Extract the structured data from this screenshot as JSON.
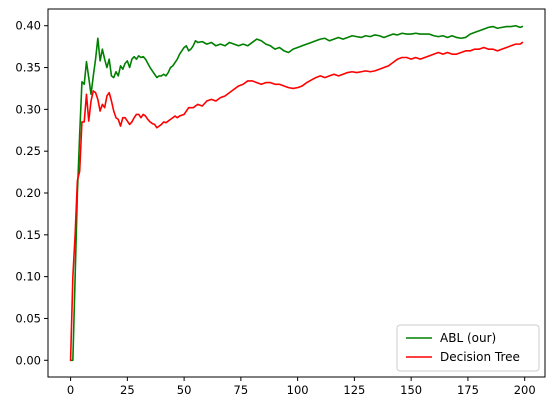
{
  "chart_data": {
    "type": "line",
    "title": "",
    "xlabel": "",
    "ylabel": "",
    "xlim": [
      -9.95,
      208.95
    ],
    "ylim": [
      -0.02,
      0.42
    ],
    "xticks": [
      0,
      25,
      50,
      75,
      100,
      125,
      150,
      175,
      200
    ],
    "yticks": [
      0.0,
      0.05,
      0.1,
      0.15,
      0.2,
      0.25,
      0.3,
      0.35,
      0.4
    ],
    "xtick_labels": [
      "0",
      "25",
      "50",
      "75",
      "100",
      "125",
      "150",
      "175",
      "200"
    ],
    "ytick_labels": [
      "0.00",
      "0.05",
      "0.10",
      "0.15",
      "0.20",
      "0.25",
      "0.30",
      "0.35",
      "0.40"
    ],
    "grid": false,
    "legend": {
      "position": "lower-right"
    },
    "series": [
      {
        "name": "ABL (our)",
        "color": "#008000",
        "points": [
          [
            0,
            0.0
          ],
          [
            1,
            0.0
          ],
          [
            2,
            0.1
          ],
          [
            3,
            0.2
          ],
          [
            4,
            0.27
          ],
          [
            5,
            0.333
          ],
          [
            6,
            0.33
          ],
          [
            7,
            0.357
          ],
          [
            8,
            0.338
          ],
          [
            9,
            0.318
          ],
          [
            10,
            0.34
          ],
          [
            11,
            0.36
          ],
          [
            12,
            0.385
          ],
          [
            13,
            0.358
          ],
          [
            14,
            0.372
          ],
          [
            15,
            0.36
          ],
          [
            16,
            0.35
          ],
          [
            17,
            0.36
          ],
          [
            18,
            0.34
          ],
          [
            19,
            0.338
          ],
          [
            20,
            0.345
          ],
          [
            21,
            0.34
          ],
          [
            22,
            0.352
          ],
          [
            23,
            0.348
          ],
          [
            24,
            0.355
          ],
          [
            25,
            0.358
          ],
          [
            26,
            0.35
          ],
          [
            27,
            0.36
          ],
          [
            28,
            0.363
          ],
          [
            29,
            0.36
          ],
          [
            30,
            0.364
          ],
          [
            31,
            0.362
          ],
          [
            32,
            0.363
          ],
          [
            33,
            0.36
          ],
          [
            34,
            0.355
          ],
          [
            35,
            0.35
          ],
          [
            36,
            0.346
          ],
          [
            37,
            0.342
          ],
          [
            38,
            0.338
          ],
          [
            39,
            0.34
          ],
          [
            40,
            0.34
          ],
          [
            41,
            0.342
          ],
          [
            42,
            0.34
          ],
          [
            43,
            0.344
          ],
          [
            44,
            0.35
          ],
          [
            45,
            0.352
          ],
          [
            46,
            0.356
          ],
          [
            47,
            0.36
          ],
          [
            48,
            0.366
          ],
          [
            49,
            0.37
          ],
          [
            50,
            0.374
          ],
          [
            51,
            0.376
          ],
          [
            52,
            0.37
          ],
          [
            53,
            0.372
          ],
          [
            54,
            0.376
          ],
          [
            55,
            0.382
          ],
          [
            56,
            0.38
          ],
          [
            58,
            0.381
          ],
          [
            60,
            0.378
          ],
          [
            62,
            0.38
          ],
          [
            64,
            0.376
          ],
          [
            66,
            0.378
          ],
          [
            68,
            0.376
          ],
          [
            70,
            0.38
          ],
          [
            72,
            0.378
          ],
          [
            74,
            0.376
          ],
          [
            76,
            0.378
          ],
          [
            78,
            0.376
          ],
          [
            80,
            0.38
          ],
          [
            82,
            0.384
          ],
          [
            84,
            0.382
          ],
          [
            86,
            0.378
          ],
          [
            88,
            0.376
          ],
          [
            90,
            0.372
          ],
          [
            92,
            0.374
          ],
          [
            94,
            0.37
          ],
          [
            96,
            0.368
          ],
          [
            98,
            0.372
          ],
          [
            100,
            0.374
          ],
          [
            102,
            0.376
          ],
          [
            104,
            0.378
          ],
          [
            106,
            0.38
          ],
          [
            108,
            0.382
          ],
          [
            110,
            0.384
          ],
          [
            112,
            0.385
          ],
          [
            114,
            0.382
          ],
          [
            116,
            0.384
          ],
          [
            118,
            0.386
          ],
          [
            120,
            0.384
          ],
          [
            122,
            0.386
          ],
          [
            124,
            0.388
          ],
          [
            126,
            0.387
          ],
          [
            128,
            0.386
          ],
          [
            130,
            0.388
          ],
          [
            132,
            0.387
          ],
          [
            134,
            0.389
          ],
          [
            136,
            0.388
          ],
          [
            138,
            0.386
          ],
          [
            140,
            0.388
          ],
          [
            142,
            0.39
          ],
          [
            144,
            0.389
          ],
          [
            146,
            0.391
          ],
          [
            148,
            0.39
          ],
          [
            150,
            0.39
          ],
          [
            152,
            0.391
          ],
          [
            154,
            0.39
          ],
          [
            156,
            0.39
          ],
          [
            158,
            0.39
          ],
          [
            160,
            0.388
          ],
          [
            162,
            0.387
          ],
          [
            164,
            0.388
          ],
          [
            166,
            0.386
          ],
          [
            168,
            0.388
          ],
          [
            170,
            0.386
          ],
          [
            172,
            0.385
          ],
          [
            174,
            0.386
          ],
          [
            176,
            0.39
          ],
          [
            178,
            0.392
          ],
          [
            180,
            0.394
          ],
          [
            182,
            0.396
          ],
          [
            184,
            0.398
          ],
          [
            186,
            0.399
          ],
          [
            188,
            0.397
          ],
          [
            190,
            0.398
          ],
          [
            192,
            0.399
          ],
          [
            194,
            0.399
          ],
          [
            196,
            0.4
          ],
          [
            198,
            0.398
          ],
          [
            199,
            0.399
          ]
        ]
      },
      {
        "name": "Decision Tree",
        "color": "#ff0000",
        "points": [
          [
            0,
            0.0
          ],
          [
            1,
            0.1
          ],
          [
            2,
            0.15
          ],
          [
            3,
            0.215
          ],
          [
            4,
            0.226
          ],
          [
            5,
            0.285
          ],
          [
            6,
            0.285
          ],
          [
            7,
            0.318
          ],
          [
            8,
            0.286
          ],
          [
            9,
            0.31
          ],
          [
            10,
            0.322
          ],
          [
            11,
            0.32
          ],
          [
            12,
            0.312
          ],
          [
            13,
            0.298
          ],
          [
            14,
            0.306
          ],
          [
            15,
            0.302
          ],
          [
            16,
            0.316
          ],
          [
            17,
            0.32
          ],
          [
            18,
            0.31
          ],
          [
            19,
            0.298
          ],
          [
            20,
            0.29
          ],
          [
            21,
            0.288
          ],
          [
            22,
            0.28
          ],
          [
            23,
            0.29
          ],
          [
            24,
            0.29
          ],
          [
            25,
            0.286
          ],
          [
            26,
            0.282
          ],
          [
            27,
            0.285
          ],
          [
            28,
            0.29
          ],
          [
            29,
            0.294
          ],
          [
            30,
            0.294
          ],
          [
            31,
            0.29
          ],
          [
            32,
            0.294
          ],
          [
            33,
            0.292
          ],
          [
            34,
            0.288
          ],
          [
            35,
            0.285
          ],
          [
            36,
            0.283
          ],
          [
            37,
            0.282
          ],
          [
            38,
            0.278
          ],
          [
            39,
            0.28
          ],
          [
            40,
            0.282
          ],
          [
            41,
            0.285
          ],
          [
            42,
            0.284
          ],
          [
            43,
            0.286
          ],
          [
            44,
            0.288
          ],
          [
            45,
            0.29
          ],
          [
            46,
            0.292
          ],
          [
            47,
            0.29
          ],
          [
            48,
            0.292
          ],
          [
            50,
            0.294
          ],
          [
            52,
            0.302
          ],
          [
            54,
            0.302
          ],
          [
            56,
            0.306
          ],
          [
            58,
            0.304
          ],
          [
            60,
            0.31
          ],
          [
            62,
            0.312
          ],
          [
            64,
            0.31
          ],
          [
            66,
            0.314
          ],
          [
            68,
            0.316
          ],
          [
            70,
            0.32
          ],
          [
            72,
            0.324
          ],
          [
            74,
            0.328
          ],
          [
            76,
            0.33
          ],
          [
            78,
            0.334
          ],
          [
            80,
            0.334
          ],
          [
            82,
            0.332
          ],
          [
            84,
            0.33
          ],
          [
            86,
            0.332
          ],
          [
            88,
            0.332
          ],
          [
            90,
            0.33
          ],
          [
            92,
            0.33
          ],
          [
            94,
            0.328
          ],
          [
            96,
            0.326
          ],
          [
            98,
            0.325
          ],
          [
            100,
            0.326
          ],
          [
            102,
            0.328
          ],
          [
            104,
            0.332
          ],
          [
            106,
            0.335
          ],
          [
            108,
            0.338
          ],
          [
            110,
            0.34
          ],
          [
            112,
            0.338
          ],
          [
            114,
            0.34
          ],
          [
            116,
            0.342
          ],
          [
            118,
            0.34
          ],
          [
            120,
            0.342
          ],
          [
            122,
            0.344
          ],
          [
            124,
            0.345
          ],
          [
            126,
            0.344
          ],
          [
            128,
            0.345
          ],
          [
            130,
            0.346
          ],
          [
            132,
            0.345
          ],
          [
            134,
            0.346
          ],
          [
            136,
            0.348
          ],
          [
            138,
            0.35
          ],
          [
            140,
            0.352
          ],
          [
            142,
            0.356
          ],
          [
            144,
            0.36
          ],
          [
            146,
            0.362
          ],
          [
            148,
            0.362
          ],
          [
            150,
            0.36
          ],
          [
            152,
            0.362
          ],
          [
            154,
            0.36
          ],
          [
            156,
            0.362
          ],
          [
            158,
            0.364
          ],
          [
            160,
            0.366
          ],
          [
            162,
            0.368
          ],
          [
            164,
            0.366
          ],
          [
            166,
            0.368
          ],
          [
            168,
            0.366
          ],
          [
            170,
            0.366
          ],
          [
            172,
            0.368
          ],
          [
            174,
            0.37
          ],
          [
            176,
            0.37
          ],
          [
            178,
            0.372
          ],
          [
            180,
            0.372
          ],
          [
            182,
            0.374
          ],
          [
            184,
            0.372
          ],
          [
            186,
            0.372
          ],
          [
            188,
            0.37
          ],
          [
            190,
            0.372
          ],
          [
            192,
            0.374
          ],
          [
            194,
            0.376
          ],
          [
            196,
            0.378
          ],
          [
            198,
            0.378
          ],
          [
            199,
            0.38
          ]
        ]
      }
    ]
  }
}
